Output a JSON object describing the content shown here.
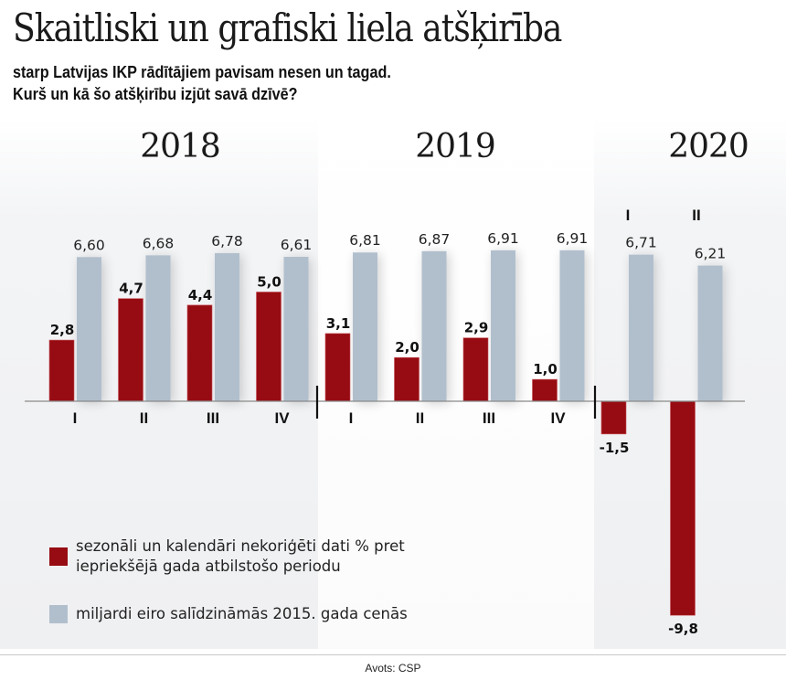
{
  "header": {
    "title": "Skaitliski un grafiski liela atšķirība",
    "subtitle_line1": "starp Latvijas IKP rādītājiem pavisam nesen un tagad.",
    "subtitle_line2": "Kurš un kā šo atšķirību izjūt savā dzīvē?"
  },
  "source": "Avots: CSP",
  "colors": {
    "red": "#960c12",
    "grey": "#b1bfcd"
  },
  "chart_data": {
    "type": "bar",
    "title": "Skaitliski un grafiski liela atšķirība",
    "year_groups": [
      {
        "year": "2018",
        "quarters": [
          "I",
          "II",
          "III",
          "IV"
        ]
      },
      {
        "year": "2019",
        "quarters": [
          "I",
          "II",
          "III",
          "IV"
        ]
      },
      {
        "year": "2020",
        "quarters": [
          "I",
          "II"
        ]
      }
    ],
    "categories": [
      "2018 I",
      "2018 II",
      "2018 III",
      "2018 IV",
      "2019 I",
      "2019 II",
      "2019 III",
      "2019 IV",
      "2020 I",
      "2020 II"
    ],
    "quarter_labels": [
      "I",
      "II",
      "III",
      "IV",
      "I",
      "II",
      "III",
      "IV",
      "I",
      "II"
    ],
    "series": [
      {
        "name": "sezonāli un kalendāri nekoriģēti dati % pret iepriekšējā gada atbilstošo periodu",
        "legend_line1": "sezonāli un kalendāri nekoriģēti dati % pret",
        "legend_line2": "iepriekšējā gada atbilstošo periodu",
        "color": "#960c12",
        "values": [
          2.8,
          4.7,
          4.4,
          5.0,
          3.1,
          2.0,
          2.9,
          1.0,
          -1.5,
          -9.8
        ],
        "labels": [
          "2,8",
          "4,7",
          "4,4",
          "5,0",
          "3,1",
          "2,0",
          "2,9",
          "1,0",
          "-1,5",
          "-9,8"
        ]
      },
      {
        "name": "miljardi eiro salīdzināmās 2015. gada cenās",
        "legend_line1": "miljardi eiro salīdzināmās 2015. gada cenās",
        "color": "#b1bfcd",
        "values": [
          6.6,
          6.68,
          6.78,
          6.61,
          6.81,
          6.87,
          6.91,
          6.91,
          6.71,
          6.21
        ],
        "labels": [
          "6,60",
          "6,68",
          "6,78",
          "6,61",
          "6,81",
          "6,87",
          "6,91",
          "6,91",
          "6,71",
          "6,21"
        ]
      }
    ],
    "xlabel": "",
    "ylabel": "",
    "grid": false,
    "legend_position": "bottom-left"
  }
}
